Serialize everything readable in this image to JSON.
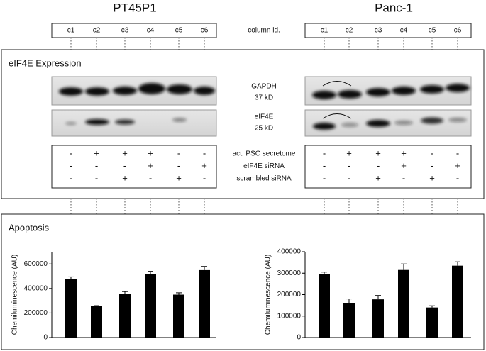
{
  "headers": [
    "PT45P1",
    "Panc-1"
  ],
  "column_ids": [
    "c1",
    "c2",
    "c3",
    "c4",
    "c5",
    "c6"
  ],
  "column_id_label": "column id.",
  "expression_title": "eIF4E Expression",
  "blots": [
    {
      "name": "GAPDH",
      "size": "37 kD"
    },
    {
      "name": "eIF4E",
      "size": "25 kD"
    }
  ],
  "conditions": [
    {
      "label": "act. PSC secretome",
      "signs": [
        "-",
        "+",
        "+",
        "+",
        "-",
        "-"
      ]
    },
    {
      "label": "eIF4E siRNA",
      "signs": [
        "-",
        "-",
        "-",
        "+",
        "-",
        "+"
      ]
    },
    {
      "label": "scrambled siRNA",
      "signs": [
        "-",
        "-",
        "+",
        "-",
        "+",
        "-"
      ]
    }
  ],
  "apoptosis_title": "Apoptosis",
  "chart_data": [
    {
      "type": "bar",
      "y_label": "Chemiluminescence  (AU)",
      "color": "#000000",
      "values": [
        480000,
        255000,
        355000,
        520000,
        350000,
        550000
      ],
      "errors": [
        15000,
        5000,
        20000,
        20000,
        15000,
        30000
      ],
      "ylim": [
        0,
        700000
      ],
      "yticks": [
        0,
        200000,
        400000,
        600000
      ]
    },
    {
      "type": "bar",
      "y_label": "Chemiluminescence  (AU)",
      "color": "#000000",
      "values": [
        295000,
        160000,
        178000,
        315000,
        140000,
        335000
      ],
      "errors": [
        10000,
        20000,
        18000,
        28000,
        8000,
        18000
      ],
      "ylim": [
        0,
        400000
      ],
      "yticks": [
        0,
        100000,
        200000,
        300000,
        400000
      ]
    }
  ]
}
